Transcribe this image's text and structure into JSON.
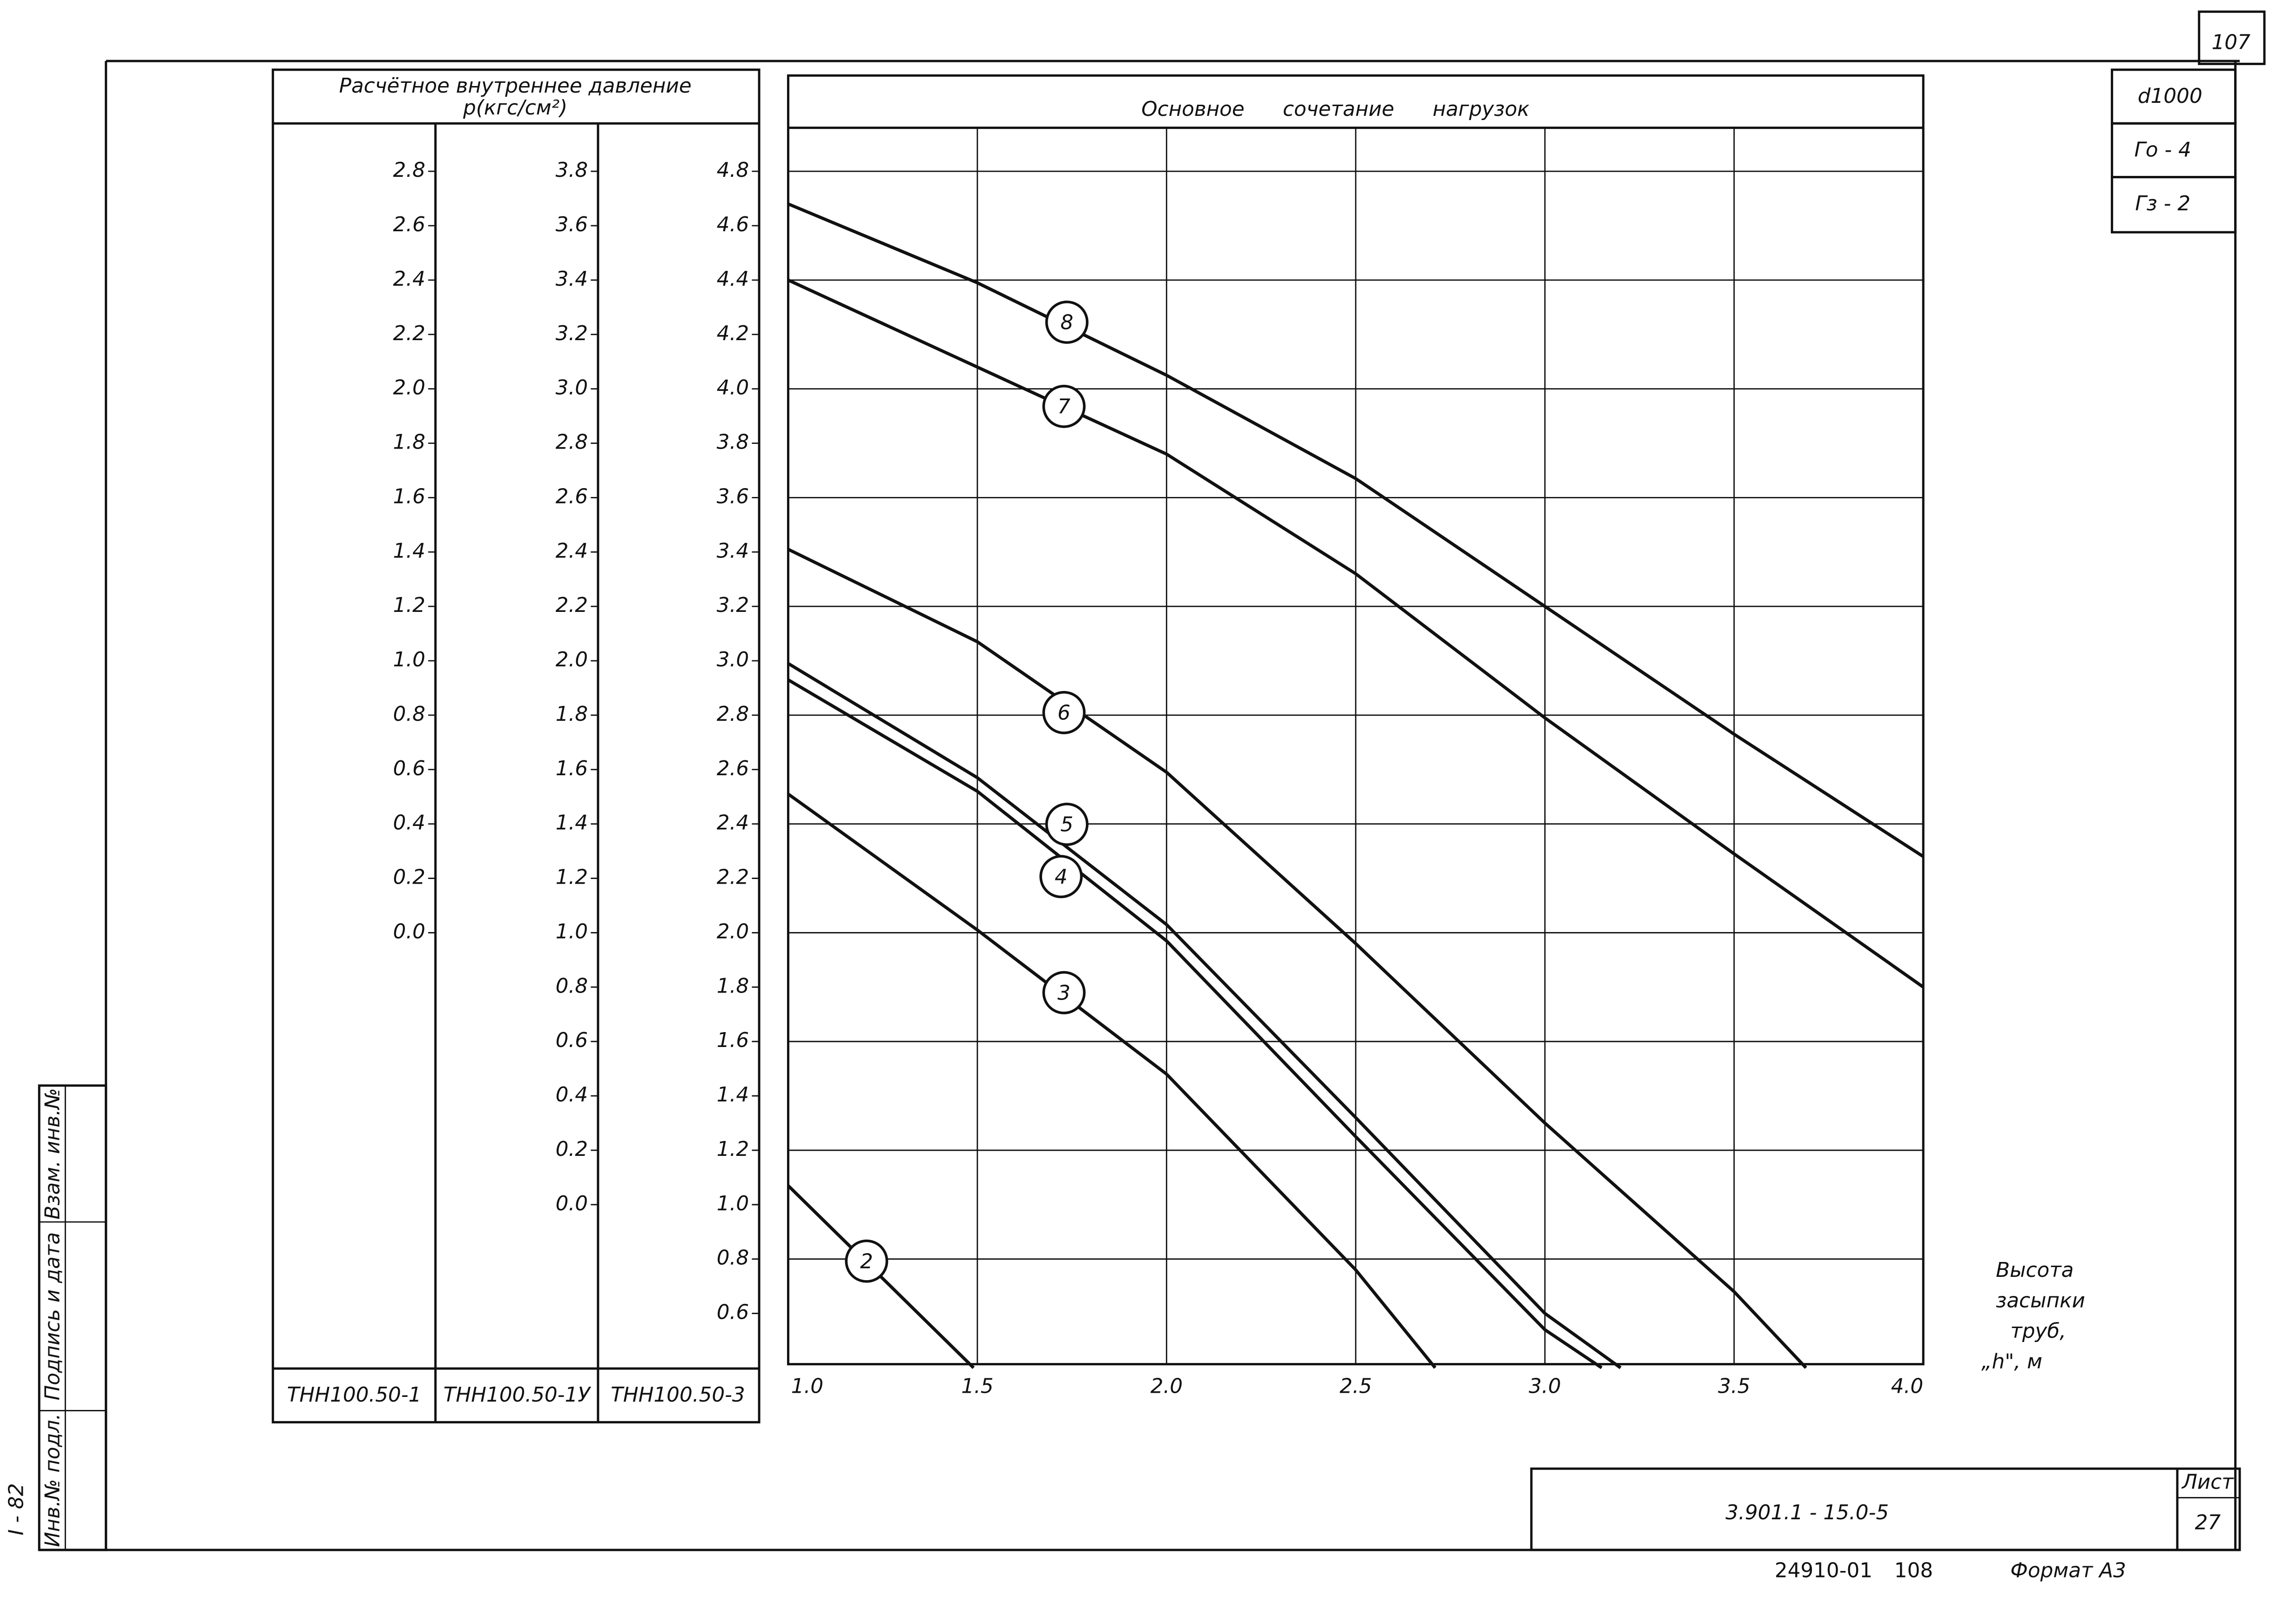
{
  "chart_data": {
    "type": "line",
    "title": "Основное сочетание нагрузок",
    "ylabel": [
      "Расчётное внутреннее давление",
      "p(кгс/см²)"
    ],
    "xlabel": [
      "Высота",
      "засыпки",
      "труб,",
      "„h\", м"
    ],
    "xlim": [
      1,
      4
    ],
    "xticks": [
      {
        "value": 1,
        "label": "1.0"
      },
      1.5,
      {
        "value": 2,
        "label": "2.0"
      },
      2.5,
      {
        "value": 3,
        "label": "3.0"
      },
      3.5,
      {
        "value": 4,
        "label": "4.0"
      }
    ],
    "ylim": [
      0.4,
      4.8
    ],
    "y_name": "ТНН100.50-3",
    "yticks": [
      4.8,
      4.6,
      4.4,
      4.2,
      {
        "value": 4,
        "label": "4.0"
      },
      3.8,
      3.6,
      3.4,
      3.2,
      {
        "value": 3,
        "label": "3.0"
      },
      2.8,
      2.6,
      2.4,
      2.2,
      {
        "value": 2,
        "label": "2.0"
      },
      1.8,
      1.6,
      1.4,
      1.2,
      {
        "value": 1,
        "label": "1.0"
      },
      0.8,
      0.6
    ],
    "ygrid": [
      4.8,
      4.4,
      4,
      3.6,
      3.2,
      2.8,
      2.4,
      2,
      1.6,
      1.2,
      0.8
    ],
    "extra_y_axes": [
      {
        "name": "ТНН100.50-1",
        "ylim": [
          -1.6,
          2.8
        ],
        "yticks": [
          2.8,
          2.6,
          2.4,
          2.2,
          {
            "value": 2,
            "label": "2.0"
          },
          1.8,
          1.6,
          1.4,
          1.2,
          {
            "value": 1,
            "label": "1.0"
          },
          0.8,
          0.6,
          0.4,
          0.2,
          {
            "value": 0,
            "label": "0.0"
          }
        ]
      },
      {
        "name": "ТНН100.50-1У",
        "ylim": [
          -0.6,
          3.8
        ],
        "yticks": [
          3.8,
          3.6,
          3.4,
          3.2,
          {
            "value": 3,
            "label": "3.0"
          },
          2.8,
          2.6,
          2.4,
          2.2,
          {
            "value": 2,
            "label": "2.0"
          },
          1.8,
          1.6,
          1.4,
          1.2,
          {
            "value": 1,
            "label": "1.0"
          },
          0.8,
          0.6,
          0.4,
          0.2,
          {
            "value": 0,
            "label": "0.0"
          }
        ]
      }
    ],
    "color": "#111111",
    "series": [
      {
        "name": "8",
        "x": [
          1,
          1.5,
          2,
          2.5,
          3,
          3.5,
          4
        ],
        "y": [
          4.68,
          4.39,
          4.05,
          3.67,
          3.2,
          2.73,
          2.28
        ]
      },
      {
        "name": "7",
        "x": [
          1,
          1.5,
          2,
          2.5,
          3,
          3.5,
          4
        ],
        "y": [
          4.4,
          4.08,
          3.76,
          3.32,
          2.79,
          2.29,
          1.8
        ]
      },
      {
        "name": "6",
        "x": [
          1,
          1.5,
          2,
          2.5,
          3,
          3.5,
          3.69
        ],
        "y": [
          3.41,
          3.07,
          2.59,
          1.96,
          1.3,
          0.68,
          0.4
        ]
      },
      {
        "name": "5",
        "x": [
          1,
          1.5,
          2,
          2.5,
          3,
          3.2
        ],
        "y": [
          2.99,
          2.57,
          2.03,
          1.32,
          0.6,
          0.4
        ]
      },
      {
        "name": "4",
        "x": [
          1,
          1.5,
          2,
          2.5,
          3,
          3.15
        ],
        "y": [
          2.93,
          2.52,
          1.97,
          1.25,
          0.54,
          0.4
        ]
      },
      {
        "name": "3",
        "x": [
          1,
          1.5,
          2,
          2.5,
          2.71
        ],
        "y": [
          2.51,
          2.01,
          1.48,
          0.76,
          0.4
        ]
      },
      {
        "name": "2",
        "x": [
          1,
          1.49
        ],
        "y": [
          1.07,
          0.4
        ]
      }
    ]
  },
  "sheet": {
    "corner_number": "107",
    "diameter": "d1000",
    "g0": "Го - 4",
    "g3": "Гз - 2",
    "document": "3.901.1 - 15.0-5",
    "list_label": "Лист",
    "list": "27",
    "inventory": "24910-01",
    "copy": "108",
    "format": "Формат А3",
    "side": [
      "Инв.№ подл.",
      "Подпись и дата",
      "Взам. инв.№"
    ],
    "side_code": "I - 82"
  }
}
